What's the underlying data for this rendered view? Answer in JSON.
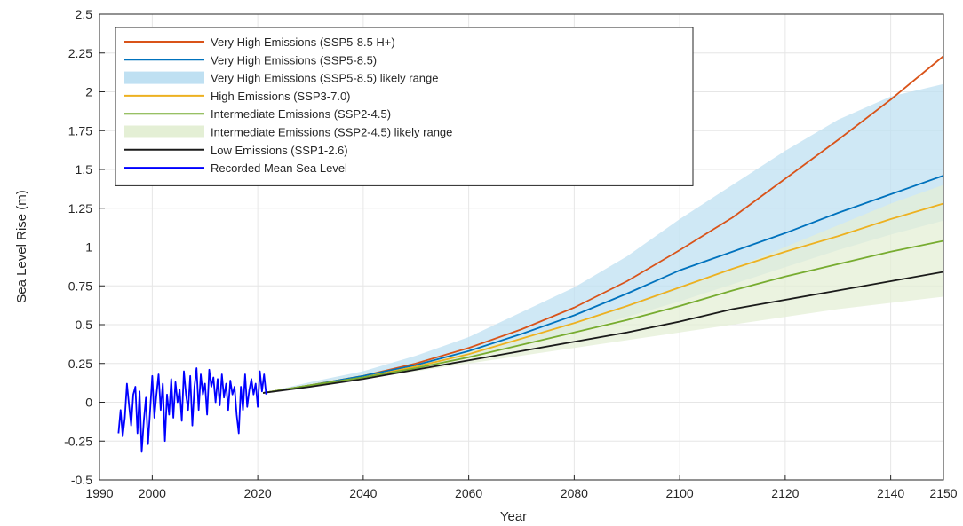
{
  "chart_data": {
    "type": "line",
    "title": "",
    "xlabel": "Year",
    "ylabel": "Sea Level Rise (m)",
    "xlim": [
      1990,
      2150
    ],
    "ylim": [
      -0.5,
      2.5
    ],
    "x_ticks": [
      1990,
      2000,
      2020,
      2040,
      2060,
      2080,
      2100,
      2120,
      2140,
      2150
    ],
    "y_ticks": [
      -0.5,
      -0.25,
      0,
      0.25,
      0.5,
      0.75,
      1,
      1.25,
      1.5,
      1.75,
      2,
      2.25,
      2.5
    ],
    "y_tick_labels": [
      "-0.5",
      "-0.25",
      "0",
      "0.25",
      "0.5",
      "0.75",
      "1",
      "1.25",
      "1.5",
      "1.75",
      "2",
      "2.25",
      "2.5"
    ],
    "grid": true,
    "legend_position": "top-left",
    "bands": [
      {
        "name": "Very High Emissions (SSP5-8.5) likely range",
        "color": "#bfe0f2",
        "x": [
          2021,
          2030,
          2040,
          2050,
          2060,
          2070,
          2080,
          2090,
          2100,
          2110,
          2120,
          2130,
          2140,
          2150
        ],
        "lower": [
          0.06,
          0.11,
          0.16,
          0.22,
          0.29,
          0.37,
          0.45,
          0.55,
          0.65,
          0.76,
          0.87,
          0.98,
          1.08,
          1.17
        ],
        "upper": [
          0.06,
          0.13,
          0.2,
          0.3,
          0.42,
          0.58,
          0.74,
          0.94,
          1.18,
          1.4,
          1.62,
          1.82,
          1.97,
          2.05
        ]
      },
      {
        "name": "Intermediate Emissions (SSP2-4.5) likely range",
        "color": "#e4efd5",
        "x": [
          2021,
          2030,
          2040,
          2050,
          2060,
          2070,
          2080,
          2090,
          2100,
          2110,
          2120,
          2130,
          2140,
          2150
        ],
        "lower": [
          0.06,
          0.11,
          0.15,
          0.2,
          0.25,
          0.3,
          0.35,
          0.4,
          0.45,
          0.5,
          0.55,
          0.6,
          0.64,
          0.68
        ],
        "upper": [
          0.06,
          0.12,
          0.18,
          0.25,
          0.33,
          0.42,
          0.51,
          0.61,
          0.73,
          0.86,
          1.0,
          1.14,
          1.28,
          1.4
        ]
      }
    ],
    "series": [
      {
        "name": "Very High Emissions (SSP5-8.5 H+)",
        "color": "#d95319",
        "x": [
          2021,
          2030,
          2040,
          2050,
          2060,
          2070,
          2080,
          2090,
          2100,
          2110,
          2120,
          2130,
          2140,
          2150
        ],
        "values": [
          0.06,
          0.11,
          0.17,
          0.25,
          0.35,
          0.47,
          0.61,
          0.78,
          0.98,
          1.19,
          1.44,
          1.69,
          1.95,
          2.23
        ]
      },
      {
        "name": "Very High Emissions (SSP5-8.5)",
        "color": "#0072bd",
        "x": [
          2021,
          2030,
          2040,
          2050,
          2060,
          2070,
          2080,
          2090,
          2100,
          2110,
          2120,
          2130,
          2140,
          2150
        ],
        "values": [
          0.06,
          0.11,
          0.17,
          0.24,
          0.33,
          0.44,
          0.56,
          0.7,
          0.85,
          0.97,
          1.09,
          1.22,
          1.34,
          1.46
        ]
      },
      {
        "name": "High Emissions (SSP3-7.0)",
        "color": "#edb120",
        "x": [
          2021,
          2030,
          2040,
          2050,
          2060,
          2070,
          2080,
          2090,
          2100,
          2110,
          2120,
          2130,
          2140,
          2150
        ],
        "values": [
          0.06,
          0.11,
          0.16,
          0.23,
          0.31,
          0.41,
          0.51,
          0.62,
          0.74,
          0.86,
          0.97,
          1.07,
          1.18,
          1.28
        ]
      },
      {
        "name": "Intermediate Emissions (SSP2-4.5)",
        "color": "#77ac30",
        "x": [
          2021,
          2030,
          2040,
          2050,
          2060,
          2070,
          2080,
          2090,
          2100,
          2110,
          2120,
          2130,
          2140,
          2150
        ],
        "values": [
          0.06,
          0.11,
          0.16,
          0.22,
          0.29,
          0.37,
          0.45,
          0.53,
          0.62,
          0.72,
          0.81,
          0.89,
          0.97,
          1.04
        ]
      },
      {
        "name": "Low Emissions (SSP1-2.6)",
        "color": "#1a1a1a",
        "x": [
          2021,
          2030,
          2040,
          2050,
          2060,
          2070,
          2080,
          2090,
          2100,
          2110,
          2120,
          2130,
          2140,
          2150
        ],
        "values": [
          0.06,
          0.1,
          0.15,
          0.21,
          0.27,
          0.33,
          0.39,
          0.45,
          0.52,
          0.6,
          0.66,
          0.72,
          0.78,
          0.84
        ]
      },
      {
        "name": "Recorded Mean Sea Level",
        "color": "#0000ff",
        "x": [
          1993.6,
          1994.0,
          1994.4,
          1994.8,
          1995.2,
          1995.6,
          1996.0,
          1996.4,
          1996.8,
          1997.2,
          1997.6,
          1998.0,
          1998.4,
          1998.8,
          1999.2,
          1999.6,
          2000.0,
          2000.4,
          2000.8,
          2001.2,
          2001.6,
          2002.0,
          2002.4,
          2002.8,
          2003.2,
          2003.6,
          2004.0,
          2004.4,
          2004.8,
          2005.2,
          2005.6,
          2006.0,
          2006.4,
          2006.8,
          2007.2,
          2007.6,
          2008.0,
          2008.4,
          2008.8,
          2009.2,
          2009.6,
          2010.0,
          2010.4,
          2010.8,
          2011.2,
          2011.6,
          2012.0,
          2012.4,
          2012.8,
          2013.2,
          2013.6,
          2014.0,
          2014.4,
          2014.8,
          2015.2,
          2015.6,
          2016.0,
          2016.4,
          2016.8,
          2017.2,
          2017.6,
          2018.0,
          2018.4,
          2018.8,
          2019.2,
          2019.6,
          2020.0,
          2020.4,
          2020.8,
          2021.2,
          2021.6
        ],
        "values": [
          -0.2,
          -0.05,
          -0.22,
          -0.1,
          0.12,
          -0.02,
          -0.15,
          0.05,
          0.1,
          -0.2,
          0.07,
          -0.32,
          -0.12,
          0.03,
          -0.27,
          -0.05,
          0.17,
          -0.1,
          0.05,
          0.18,
          -0.05,
          0.12,
          -0.25,
          0.05,
          -0.08,
          0.15,
          -0.1,
          0.13,
          0.0,
          0.08,
          -0.12,
          0.2,
          0.05,
          -0.05,
          0.17,
          -0.15,
          0.1,
          0.22,
          -0.05,
          0.18,
          0.05,
          0.12,
          -0.08,
          0.21,
          0.1,
          0.16,
          0.0,
          0.15,
          -0.02,
          0.18,
          0.03,
          0.12,
          -0.05,
          0.14,
          0.05,
          0.1,
          -0.08,
          -0.2,
          0.1,
          -0.05,
          0.18,
          -0.03,
          0.08,
          0.15,
          0.05,
          0.12,
          -0.03,
          0.2,
          0.07,
          0.18,
          0.05
        ]
      }
    ],
    "legend": [
      {
        "label": "Very High Emissions (SSP5-8.5 H+)",
        "color": "#d95319",
        "kind": "line"
      },
      {
        "label": "Very High Emissions (SSP5-8.5)",
        "color": "#0072bd",
        "kind": "line"
      },
      {
        "label": "Very High Emissions (SSP5-8.5) likely range",
        "color": "#bfe0f2",
        "kind": "band"
      },
      {
        "label": "High Emissions (SSP3-7.0)",
        "color": "#edb120",
        "kind": "line"
      },
      {
        "label": "Intermediate Emissions (SSP2-4.5)",
        "color": "#77ac30",
        "kind": "line"
      },
      {
        "label": "Intermediate Emissions (SSP2-4.5) likely range",
        "color": "#e4efd5",
        "kind": "band"
      },
      {
        "label": "Low Emissions (SSP1-2.6)",
        "color": "#1a1a1a",
        "kind": "line"
      },
      {
        "label": "Recorded Mean Sea Level",
        "color": "#0000ff",
        "kind": "line"
      }
    ]
  }
}
